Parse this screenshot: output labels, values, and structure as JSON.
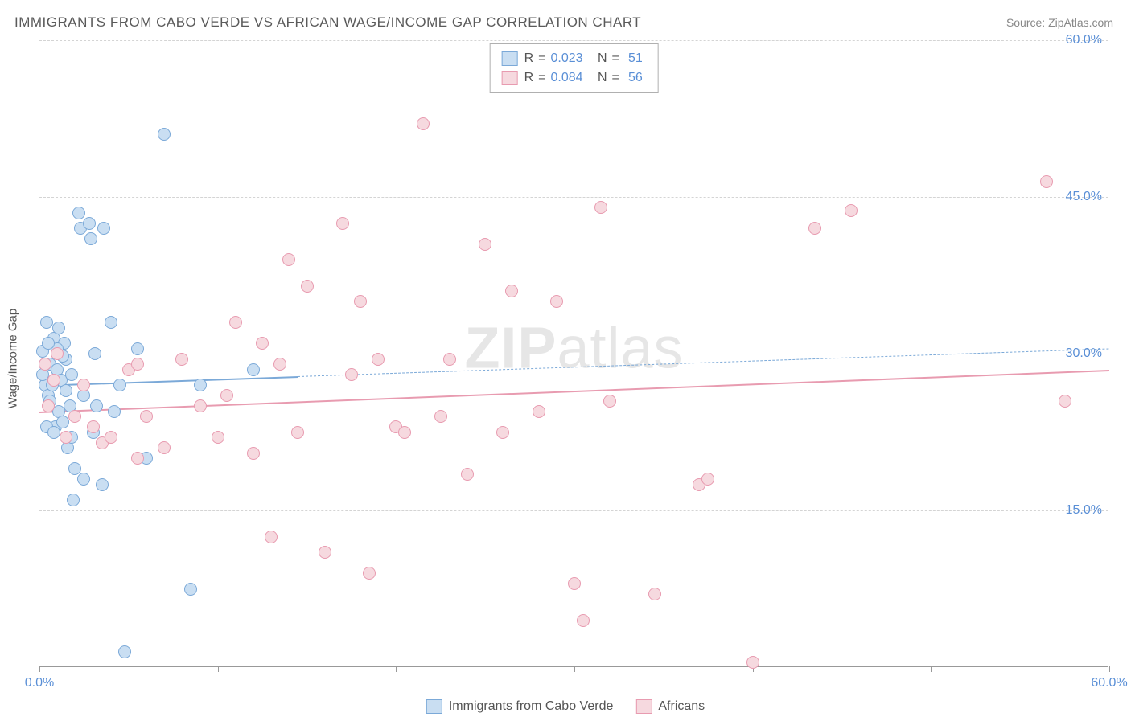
{
  "title": "IMMIGRANTS FROM CABO VERDE VS AFRICAN WAGE/INCOME GAP CORRELATION CHART",
  "source_label": "Source:",
  "source_name": "ZipAtlas.com",
  "y_axis_label": "Wage/Income Gap",
  "watermark": {
    "zip": "ZIP",
    "atlas": "atlas"
  },
  "chart": {
    "type": "scatter",
    "xlim": [
      0,
      60
    ],
    "ylim": [
      0,
      60
    ],
    "x_ticks": [
      0,
      10,
      20,
      30,
      40,
      50,
      60
    ],
    "x_tick_labels": [
      "0.0%",
      "",
      "",
      "",
      "",
      "",
      "60.0%"
    ],
    "y_gridlines": [
      15,
      30,
      45,
      60
    ],
    "y_tick_labels": [
      "15.0%",
      "30.0%",
      "45.0%",
      "60.0%"
    ],
    "background_color": "#ffffff",
    "grid_color": "#d4d4d4",
    "axis_color": "#999999",
    "label_color": "#5a8fd6",
    "marker_radius": 8,
    "marker_stroke_width": 1.5,
    "series": [
      {
        "name": "Immigrants from Cabo Verde",
        "fill": "#c9def2",
        "stroke": "#7ba9d8",
        "r": 0.023,
        "n": 51,
        "trend": {
          "x1": 0,
          "y1": 27.0,
          "x2": 60,
          "y2": 30.5,
          "solid_until_x": 14.5,
          "width": 2.5
        },
        "points": [
          [
            0.2,
            30.2
          ],
          [
            0.3,
            27.0
          ],
          [
            0.4,
            33.0
          ],
          [
            0.5,
            26.0
          ],
          [
            0.6,
            29.0
          ],
          [
            0.8,
            31.5
          ],
          [
            0.9,
            23.0
          ],
          [
            1.0,
            28.5
          ],
          [
            1.1,
            24.5
          ],
          [
            1.2,
            27.5
          ],
          [
            1.3,
            23.5
          ],
          [
            1.4,
            31.0
          ],
          [
            1.5,
            29.5
          ],
          [
            1.6,
            21.0
          ],
          [
            1.7,
            25.0
          ],
          [
            1.8,
            22.0
          ],
          [
            1.9,
            16.0
          ],
          [
            2.0,
            19.0
          ],
          [
            2.2,
            43.5
          ],
          [
            2.3,
            42.0
          ],
          [
            2.5,
            18.0
          ],
          [
            2.8,
            42.5
          ],
          [
            2.9,
            41.0
          ],
          [
            3.0,
            22.5
          ],
          [
            3.1,
            30.0
          ],
          [
            3.5,
            17.5
          ],
          [
            3.6,
            42.0
          ],
          [
            4.0,
            33.0
          ],
          [
            4.2,
            24.5
          ],
          [
            4.5,
            27.0
          ],
          [
            4.8,
            1.5
          ],
          [
            5.5,
            30.5
          ],
          [
            6.0,
            20.0
          ],
          [
            7.0,
            51.0
          ],
          [
            8.5,
            7.5
          ],
          [
            9.0,
            27.0
          ],
          [
            12.0,
            28.5
          ],
          [
            0.4,
            23.0
          ],
          [
            0.6,
            25.5
          ],
          [
            0.7,
            27.0
          ],
          [
            0.8,
            22.5
          ],
          [
            1.0,
            30.5
          ],
          [
            1.1,
            32.5
          ],
          [
            0.3,
            29.0
          ],
          [
            0.5,
            31.0
          ],
          [
            1.5,
            26.5
          ],
          [
            1.8,
            28.0
          ],
          [
            2.5,
            26.0
          ],
          [
            3.2,
            25.0
          ],
          [
            0.2,
            28.0
          ],
          [
            1.3,
            29.8
          ]
        ]
      },
      {
        "name": "Africans",
        "fill": "#f6d9df",
        "stroke": "#e89bb0",
        "r": 0.084,
        "n": 56,
        "trend": {
          "x1": 0,
          "y1": 24.5,
          "x2": 60,
          "y2": 28.5,
          "solid_until_x": 60,
          "width": 2.5
        },
        "points": [
          [
            0.3,
            29.0
          ],
          [
            0.5,
            25.0
          ],
          [
            0.8,
            27.5
          ],
          [
            1.0,
            30.0
          ],
          [
            1.5,
            22.0
          ],
          [
            2.0,
            24.0
          ],
          [
            2.5,
            27.0
          ],
          [
            3.0,
            23.0
          ],
          [
            3.5,
            21.5
          ],
          [
            4.0,
            22.0
          ],
          [
            5.0,
            28.5
          ],
          [
            5.5,
            20.0
          ],
          [
            6.0,
            24.0
          ],
          [
            7.0,
            21.0
          ],
          [
            8.0,
            29.5
          ],
          [
            9.0,
            25.0
          ],
          [
            10.0,
            22.0
          ],
          [
            10.5,
            26.0
          ],
          [
            11.0,
            33.0
          ],
          [
            12.0,
            20.5
          ],
          [
            12.5,
            31.0
          ],
          [
            13.0,
            12.5
          ],
          [
            13.5,
            29.0
          ],
          [
            14.0,
            39.0
          ],
          [
            14.5,
            22.5
          ],
          [
            15.0,
            36.5
          ],
          [
            16.0,
            11.0
          ],
          [
            17.0,
            42.5
          ],
          [
            17.5,
            28.0
          ],
          [
            18.0,
            35.0
          ],
          [
            18.5,
            9.0
          ],
          [
            19.0,
            29.5
          ],
          [
            20.0,
            23.0
          ],
          [
            20.5,
            22.5
          ],
          [
            21.5,
            52.0
          ],
          [
            22.5,
            24.0
          ],
          [
            23.0,
            29.5
          ],
          [
            24.0,
            18.5
          ],
          [
            25.0,
            40.5
          ],
          [
            26.0,
            22.5
          ],
          [
            26.5,
            36.0
          ],
          [
            28.0,
            24.5
          ],
          [
            29.0,
            35.0
          ],
          [
            30.0,
            8.0
          ],
          [
            30.5,
            4.5
          ],
          [
            31.5,
            44.0
          ],
          [
            32.0,
            25.5
          ],
          [
            34.5,
            7.0
          ],
          [
            37.0,
            17.5
          ],
          [
            37.5,
            18.0
          ],
          [
            40.0,
            0.5
          ],
          [
            43.5,
            42.0
          ],
          [
            45.5,
            43.7
          ],
          [
            56.5,
            46.5
          ],
          [
            57.5,
            25.5
          ],
          [
            5.5,
            29.0
          ]
        ]
      }
    ]
  },
  "stats_legend": {
    "r_label": "R",
    "n_label": "N",
    "eq": "="
  },
  "bottom_legend": {
    "items": [
      "Immigrants from Cabo Verde",
      "Africans"
    ]
  }
}
